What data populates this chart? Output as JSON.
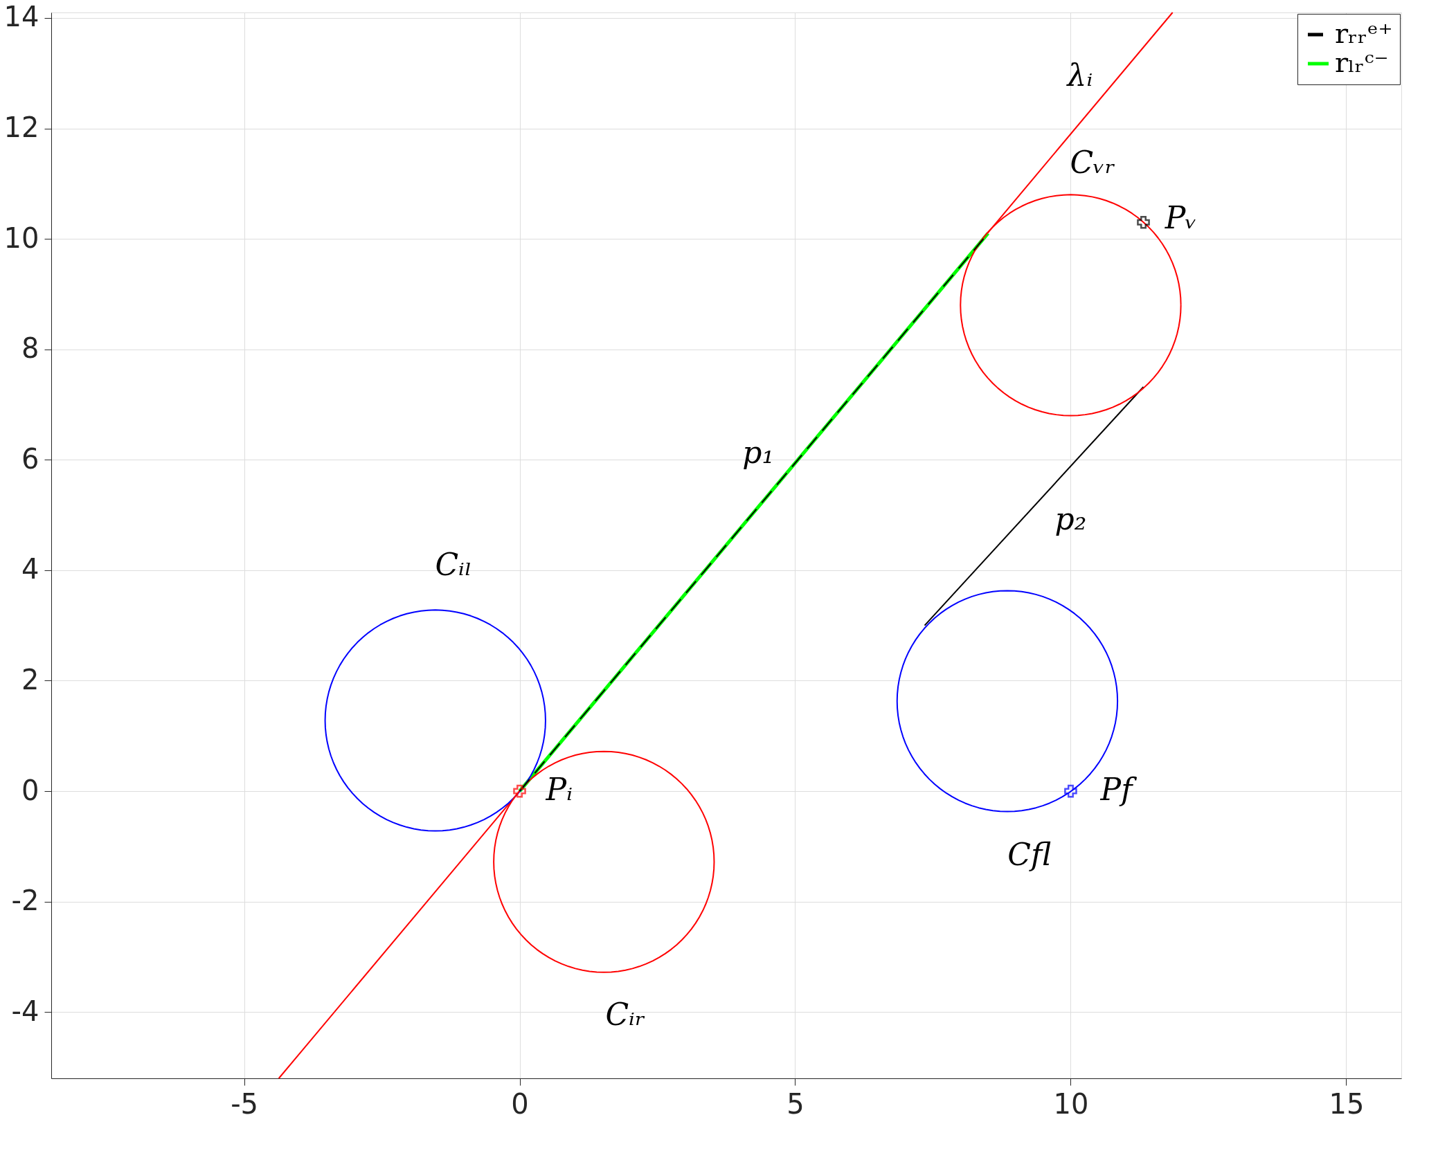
{
  "chart_data": {
    "type": "line",
    "xlim": [
      -8.5,
      16
    ],
    "ylim": [
      -5.2,
      14.1
    ],
    "xticks": [
      -5,
      0,
      5,
      10,
      15
    ],
    "yticks": [
      -4,
      -2,
      0,
      2,
      4,
      6,
      8,
      10,
      12,
      14
    ],
    "grid": true,
    "legend": "top right",
    "series": [
      {
        "color": "#ff0000",
        "x": [
          -4.37,
          11.85
        ],
        "values": [
          -5.2,
          14.1
        ]
      },
      {
        "name": "rᵣᵣᵉ⁺",
        "color": "#000000",
        "line_style": "dashed",
        "x": [
          0,
          8.5
        ],
        "values": [
          0,
          10.1
        ]
      },
      {
        "name": "rₗᵣᶜ⁻",
        "color": "#00ff00",
        "x": [
          0,
          8.5
        ],
        "values": [
          0,
          10.1
        ]
      },
      {
        "color": "#000000",
        "x": [
          7.35,
          11.32
        ],
        "values": [
          3.0,
          7.32
        ]
      },
      {
        "type": "scatter",
        "marker": "cross",
        "color": "#ff0000",
        "x": [
          0
        ],
        "values": [
          0
        ]
      },
      {
        "type": "scatter",
        "marker": "cross",
        "color": "#000000",
        "x": [
          11.32
        ],
        "values": [
          10.3
        ]
      },
      {
        "type": "scatter",
        "marker": "cross",
        "color": "#0000ff",
        "x": [
          10
        ],
        "values": [
          0
        ]
      }
    ],
    "annotations": [
      "λᵢ",
      "Cᵥᵣ",
      "Pᵥ",
      "p₁",
      "p₂",
      "Cᵢₗ",
      "Pᵢ",
      "Pf",
      "Cfl",
      "Cᵢᵣ"
    ]
  }
}
